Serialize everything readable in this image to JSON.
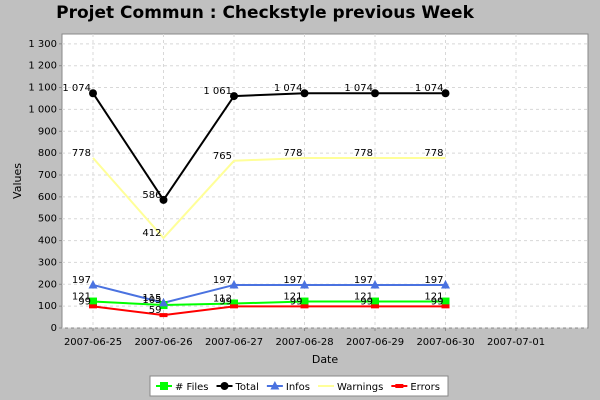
{
  "chart_data": {
    "type": "line",
    "title": "Projet Commun : Checkstyle previous Week",
    "x_label": "Date",
    "y_label": "Values",
    "categories": [
      "2007-06-25",
      "2007-06-26",
      "2007-06-27",
      "2007-06-28",
      "2007-06-29",
      "2007-06-30",
      "2007-07-01"
    ],
    "ylim": [
      0,
      1345
    ],
    "yticks": [
      0,
      100,
      200,
      300,
      400,
      500,
      600,
      700,
      800,
      900,
      {
        "value": 1000,
        "label": "1 000"
      },
      {
        "value": 1100,
        "label": "1 100"
      },
      {
        "value": 1200,
        "label": "1 200"
      },
      {
        "value": 1300,
        "label": "1 300"
      }
    ],
    "grid": true,
    "legend": "bottom",
    "series": [
      {
        "name": "# Files",
        "color": "#00ff00",
        "marker": "square",
        "values": [
          121,
          105,
          112,
          121,
          121,
          121,
          null
        ]
      },
      {
        "name": "Total",
        "color": "#000000",
        "marker": "circle",
        "values": [
          1074,
          586,
          1061,
          1074,
          1074,
          1074,
          null
        ],
        "value_labels": [
          "1 074",
          "586",
          "1 061",
          "1 074",
          "1 074",
          "1 074",
          null
        ]
      },
      {
        "name": "Infos",
        "color": "#4a72e0",
        "marker": "triangle",
        "values": [
          197,
          115,
          197,
          197,
          197,
          197,
          null
        ]
      },
      {
        "name": "Warnings",
        "color": "#ffff99",
        "marker": "none",
        "values": [
          778,
          412,
          765,
          778,
          778,
          778,
          null
        ]
      },
      {
        "name": "Errors",
        "color": "#ff0000",
        "marker": "rect",
        "values": [
          99,
          59,
          99,
          99,
          99,
          99,
          null
        ]
      }
    ]
  }
}
